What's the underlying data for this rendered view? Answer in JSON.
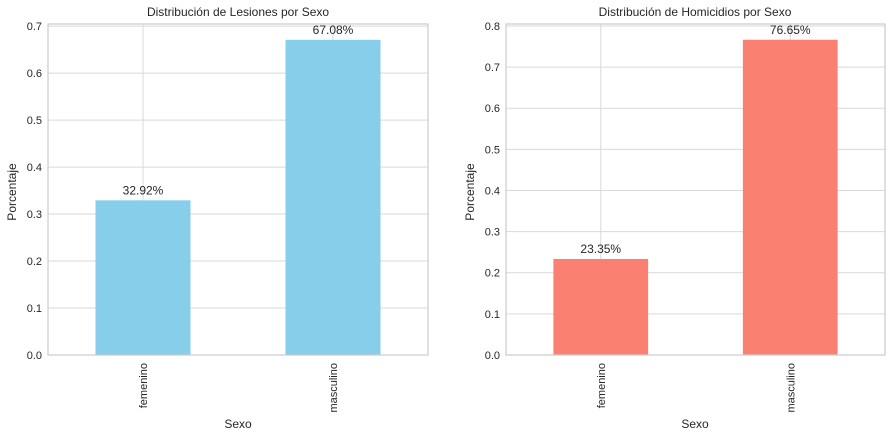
{
  "chart_data": [
    {
      "type": "bar",
      "title": "Distribución de Lesiones por Sexo",
      "xlabel": "Sexo",
      "ylabel": "Porcentaje",
      "categories": [
        "femenino",
        "masculino"
      ],
      "values": [
        0.3292,
        0.6708
      ],
      "data_labels": [
        "32.92%",
        "67.08%"
      ],
      "yticks": [
        "0.0",
        "0.1",
        "0.2",
        "0.3",
        "0.4",
        "0.5",
        "0.6",
        "0.7"
      ],
      "ylim": [
        0,
        0.7045
      ],
      "grid": true,
      "bar_color": "#87ceeb"
    },
    {
      "type": "bar",
      "title": "Distribución de Homicidios por Sexo",
      "xlabel": "Sexo",
      "ylabel": "Porcentaje",
      "categories": [
        "femenino",
        "masculino"
      ],
      "values": [
        0.2335,
        0.7665
      ],
      "data_labels": [
        "23.35%",
        "76.65%"
      ],
      "yticks": [
        "0.0",
        "0.1",
        "0.2",
        "0.3",
        "0.4",
        "0.5",
        "0.6",
        "0.7",
        "0.8"
      ],
      "ylim": [
        0,
        0.8048
      ],
      "grid": true,
      "bar_color": "#fa8072"
    }
  ]
}
